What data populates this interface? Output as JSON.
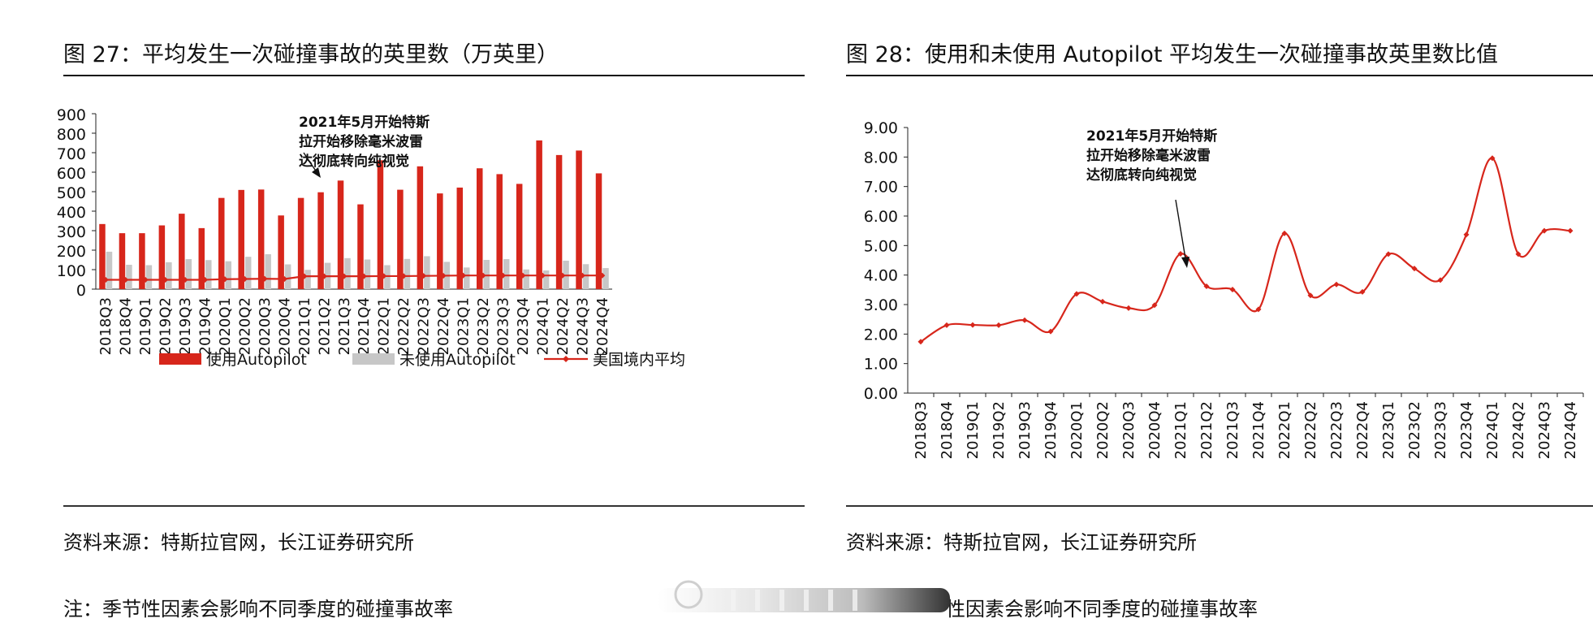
{
  "left": {
    "title": "图 27：平均发生一次碰撞事故的英里数（万英里）",
    "source": "资料来源：特斯拉官网，长江证券研究所",
    "note": "注：季节性因素会影响不同季度的碰撞事故率"
  },
  "right": {
    "title": "图 28：使用和未使用 Autopilot 平均发生一次碰撞事故英里数比值",
    "source": "资料来源：特斯拉官网，长江证券研究所",
    "note_partial": "性因素会影响不同季度的碰撞事故率"
  },
  "chart_data": [
    {
      "type": "bar",
      "categories": [
        "2018Q3",
        "2018Q4",
        "2019Q1",
        "2019Q2",
        "2019Q3",
        "2019Q4",
        "2020Q1",
        "2020Q2",
        "2020Q3",
        "2020Q4",
        "2021Q1",
        "2021Q2",
        "2021Q3",
        "2021Q4",
        "2022Q1",
        "2022Q2",
        "2022Q3",
        "2022Q4",
        "2023Q1",
        "2023Q2",
        "2023Q3",
        "2023Q4",
        "2024Q1",
        "2024Q2",
        "2024Q3",
        "2024Q4"
      ],
      "series": [
        {
          "name": "使用Autopilot",
          "kind": "bar",
          "color": "#d7261b",
          "values": [
            334,
            287,
            287,
            327,
            387,
            313,
            468,
            509,
            511,
            378,
            468,
            497,
            557,
            435,
            661,
            510,
            630,
            491,
            521,
            620,
            590,
            540,
            763,
            688,
            711,
            594
          ]
        },
        {
          "name": "未使用Autopilot",
          "kind": "bar",
          "color": "#c7c7c7",
          "values": [
            192,
            125,
            123,
            138,
            154,
            149,
            143,
            166,
            179,
            127,
            99,
            135,
            159,
            152,
            123,
            155,
            169,
            140,
            111,
            150,
            154,
            101,
            96,
            146,
            128,
            108
          ]
        },
        {
          "name": "美国境内平均",
          "kind": "line",
          "color": "#d7261b",
          "values": [
            48,
            48,
            48,
            48,
            48,
            48,
            51,
            52,
            53,
            52,
            66,
            66,
            66,
            66,
            67,
            67,
            68,
            69,
            70,
            70,
            70,
            70,
            70,
            70,
            70,
            70
          ]
        }
      ],
      "ylim": [
        0,
        900
      ],
      "yticks": [
        "0",
        "100",
        "200",
        "300",
        "400",
        "500",
        "600",
        "700",
        "800",
        "900"
      ],
      "annotation": {
        "lines": [
          "2021年5月开始特斯",
          "拉开始移除毫米波雷",
          "达彻底转向纯视觉"
        ]
      },
      "legend_position": "bottom"
    },
    {
      "type": "line",
      "categories": [
        "2018Q3",
        "2018Q4",
        "2019Q1",
        "2019Q2",
        "2019Q3",
        "2019Q4",
        "2020Q1",
        "2020Q2",
        "2020Q3",
        "2020Q4",
        "2021Q1",
        "2021Q2",
        "2021Q3",
        "2021Q4",
        "2022Q1",
        "2022Q2",
        "2022Q3",
        "2022Q4",
        "2023Q1",
        "2023Q2",
        "2023Q3",
        "2023Q4",
        "2024Q1",
        "2024Q2",
        "2024Q3",
        "2024Q4"
      ],
      "series": [
        {
          "color": "#d7261b",
          "values": [
            1.74,
            2.3,
            2.31,
            2.3,
            2.47,
            2.09,
            3.36,
            3.1,
            2.88,
            2.98,
            4.72,
            3.62,
            3.51,
            2.84,
            5.41,
            3.31,
            3.68,
            3.43,
            4.71,
            4.22,
            3.83,
            5.37,
            7.96,
            4.71,
            5.5,
            5.5
          ]
        }
      ],
      "ylim": [
        0,
        9
      ],
      "yticks": [
        "0.00",
        "1.00",
        "2.00",
        "3.00",
        "4.00",
        "5.00",
        "6.00",
        "7.00",
        "8.00",
        "9.00"
      ],
      "annotation": {
        "lines": [
          "2021年5月开始特斯",
          "拉开始移除毫米波雷",
          "达彻底转向纯视觉"
        ]
      }
    }
  ]
}
